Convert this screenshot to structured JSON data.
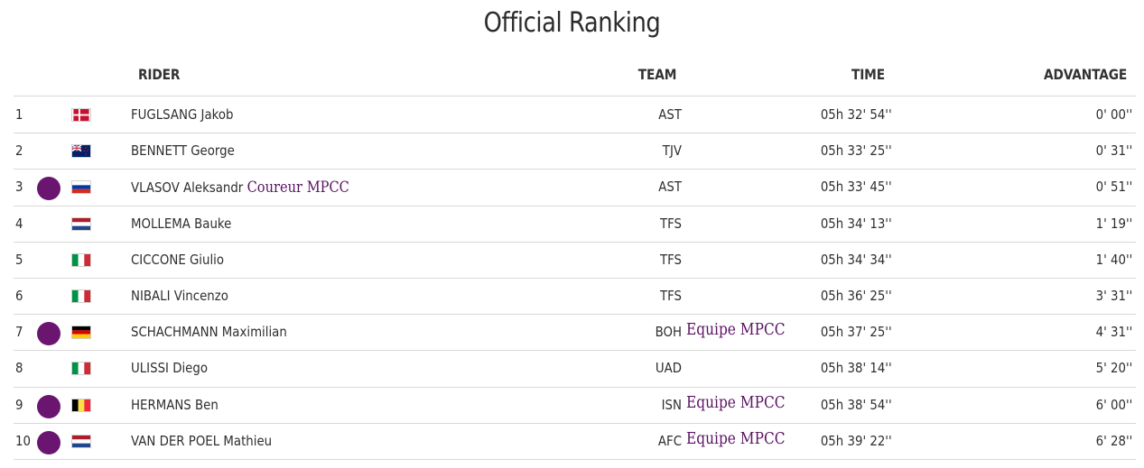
{
  "title": "Official Ranking",
  "headers": {
    "rider": "RIDER",
    "team": "TEAM",
    "time": "TIME",
    "advantage": "ADVANTAGE"
  },
  "colors": {
    "mpcc_purple": "#6a1670",
    "mpcc_text": "#5a1262"
  },
  "rows": [
    {
      "pos": "1",
      "flag": "DEN",
      "name": "FUGLSANG Jakob",
      "rider_note": "",
      "team": "AST",
      "team_note": "",
      "time": "05h 32' 54''",
      "adv": "0' 00''",
      "mpcc": false
    },
    {
      "pos": "2",
      "flag": "NZL",
      "name": "BENNETT George",
      "rider_note": "",
      "team": "TJV",
      "team_note": "",
      "time": "05h 33' 25''",
      "adv": "0' 31''",
      "mpcc": false
    },
    {
      "pos": "3",
      "flag": "RUS",
      "name": "VLASOV Aleksandr",
      "rider_note": "Coureur MPCC",
      "team": "AST",
      "team_note": "",
      "time": "05h 33' 45''",
      "adv": "0' 51''",
      "mpcc": true
    },
    {
      "pos": "4",
      "flag": "NED",
      "name": "MOLLEMA Bauke",
      "rider_note": "",
      "team": "TFS",
      "team_note": "",
      "time": "05h 34' 13''",
      "adv": "1' 19''",
      "mpcc": false
    },
    {
      "pos": "5",
      "flag": "ITA",
      "name": "CICCONE Giulio",
      "rider_note": "",
      "team": "TFS",
      "team_note": "",
      "time": "05h 34' 34''",
      "adv": "1' 40''",
      "mpcc": false
    },
    {
      "pos": "6",
      "flag": "ITA",
      "name": "NIBALI Vincenzo",
      "rider_note": "",
      "team": "TFS",
      "team_note": "",
      "time": "05h 36' 25''",
      "adv": "3' 31''",
      "mpcc": false
    },
    {
      "pos": "7",
      "flag": "GER",
      "name": "SCHACHMANN Maximilian",
      "rider_note": "",
      "team": "BOH",
      "team_note": "Equipe MPCC",
      "time": "05h 37' 25''",
      "adv": "4' 31''",
      "mpcc": true
    },
    {
      "pos": "8",
      "flag": "ITA",
      "name": "ULISSI Diego",
      "rider_note": "",
      "team": "UAD",
      "team_note": "",
      "time": "05h 38' 14''",
      "adv": "5' 20''",
      "mpcc": false
    },
    {
      "pos": "9",
      "flag": "BEL",
      "name": "HERMANS Ben",
      "rider_note": "",
      "team": "ISN",
      "team_note": "Equipe MPCC",
      "time": "05h 38' 54''",
      "adv": "6' 00''",
      "mpcc": true
    },
    {
      "pos": "10",
      "flag": "NED",
      "name": "VAN DER POEL Mathieu",
      "rider_note": "",
      "team": "AFC",
      "team_note": "Equipe MPCC",
      "time": "05h 39' 22''",
      "adv": "6' 28''",
      "mpcc": true
    }
  ]
}
